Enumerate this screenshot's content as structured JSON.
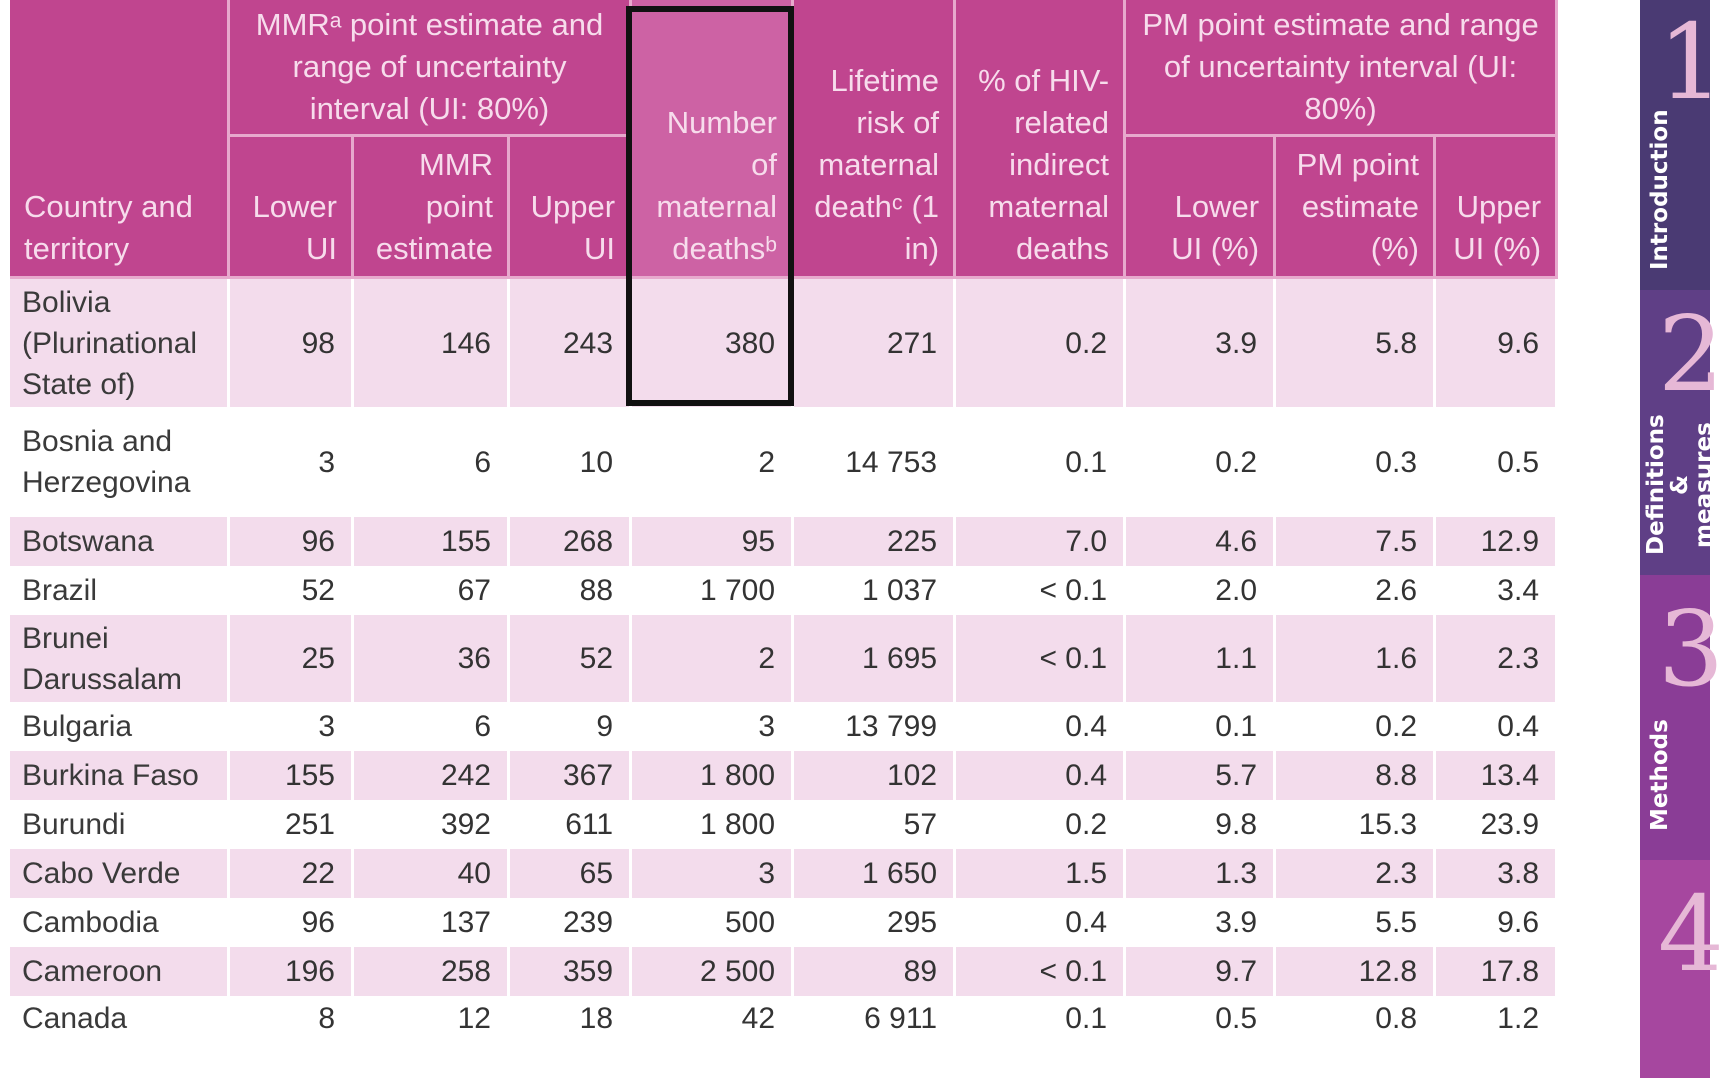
{
  "table": {
    "headers": {
      "country": "Country and territory",
      "mmr_group": "MMRᵃ point estimate and range of uncertainty interval (UI: 80%)",
      "mmr_lower": "Lower UI",
      "mmr_point": "MMR point estimate",
      "mmr_upper": "Upper UI",
      "deaths": "Number of maternal deathsᵇ",
      "lifetime": "Lifetime risk of maternal deathᶜ (1 in)",
      "hiv": "% of HIV-related indirect maternal deaths",
      "pm_group": "PM point estimate and range of uncertainty interval (UI: 80%)",
      "pm_lower": "Lower UI (%)",
      "pm_point": "PM point estimate (%)",
      "pm_upper": "Upper UI (%)"
    },
    "rows": [
      {
        "country": "Bolivia (Plurinational State of)",
        "mmr_lower": "98",
        "mmr_point": "146",
        "mmr_upper": "243",
        "deaths": "380",
        "lifetime": "271",
        "hiv": "0.2",
        "pm_lower": "3.9",
        "pm_point": "5.8",
        "pm_upper": "9.6"
      },
      {
        "country": "Bosnia and Herzegovina",
        "mmr_lower": "3",
        "mmr_point": "6",
        "mmr_upper": "10",
        "deaths": "2",
        "lifetime": "14 753",
        "hiv": "0.1",
        "pm_lower": "0.2",
        "pm_point": "0.3",
        "pm_upper": "0.5"
      },
      {
        "country": "Botswana",
        "mmr_lower": "96",
        "mmr_point": "155",
        "mmr_upper": "268",
        "deaths": "95",
        "lifetime": "225",
        "hiv": "7.0",
        "pm_lower": "4.6",
        "pm_point": "7.5",
        "pm_upper": "12.9"
      },
      {
        "country": "Brazil",
        "mmr_lower": "52",
        "mmr_point": "67",
        "mmr_upper": "88",
        "deaths": "1 700",
        "lifetime": "1 037",
        "hiv": "< 0.1",
        "pm_lower": "2.0",
        "pm_point": "2.6",
        "pm_upper": "3.4"
      },
      {
        "country": "Brunei Darussalam",
        "mmr_lower": "25",
        "mmr_point": "36",
        "mmr_upper": "52",
        "deaths": "2",
        "lifetime": "1 695",
        "hiv": "< 0.1",
        "pm_lower": "1.1",
        "pm_point": "1.6",
        "pm_upper": "2.3"
      },
      {
        "country": "Bulgaria",
        "mmr_lower": "3",
        "mmr_point": "6",
        "mmr_upper": "9",
        "deaths": "3",
        "lifetime": "13 799",
        "hiv": "0.4",
        "pm_lower": "0.1",
        "pm_point": "0.2",
        "pm_upper": "0.4"
      },
      {
        "country": "Burkina Faso",
        "mmr_lower": "155",
        "mmr_point": "242",
        "mmr_upper": "367",
        "deaths": "1 800",
        "lifetime": "102",
        "hiv": "0.4",
        "pm_lower": "5.7",
        "pm_point": "8.8",
        "pm_upper": "13.4"
      },
      {
        "country": "Burundi",
        "mmr_lower": "251",
        "mmr_point": "392",
        "mmr_upper": "611",
        "deaths": "1 800",
        "lifetime": "57",
        "hiv": "0.2",
        "pm_lower": "9.8",
        "pm_point": "15.3",
        "pm_upper": "23.9"
      },
      {
        "country": "Cabo Verde",
        "mmr_lower": "22",
        "mmr_point": "40",
        "mmr_upper": "65",
        "deaths": "3",
        "lifetime": "1 650",
        "hiv": "1.5",
        "pm_lower": "1.3",
        "pm_point": "2.3",
        "pm_upper": "3.8"
      },
      {
        "country": "Cambodia",
        "mmr_lower": "96",
        "mmr_point": "137",
        "mmr_upper": "239",
        "deaths": "500",
        "lifetime": "295",
        "hiv": "0.4",
        "pm_lower": "3.9",
        "pm_point": "5.5",
        "pm_upper": "9.6"
      },
      {
        "country": "Cameroon",
        "mmr_lower": "196",
        "mmr_point": "258",
        "mmr_upper": "359",
        "deaths": "2 500",
        "lifetime": "89",
        "hiv": "< 0.1",
        "pm_lower": "9.7",
        "pm_point": "12.8",
        "pm_upper": "17.8"
      },
      {
        "country": "Canada",
        "mmr_lower": "8",
        "mmr_point": "12",
        "mmr_upper": "18",
        "deaths": "42",
        "lifetime": "6 911",
        "hiv": "0.1",
        "pm_lower": "0.5",
        "pm_point": "0.8",
        "pm_upper": "1.2"
      }
    ]
  },
  "side_tabs": [
    {
      "number": "1",
      "label": "Introduction",
      "color": "#4a3a73"
    },
    {
      "number": "2",
      "label": "Definitions & measures",
      "color": "#5f3f86"
    },
    {
      "number": "3",
      "label": "Methods",
      "color": "#8a3d96"
    },
    {
      "number": "4",
      "label": "",
      "color": "#a6479f"
    }
  ]
}
